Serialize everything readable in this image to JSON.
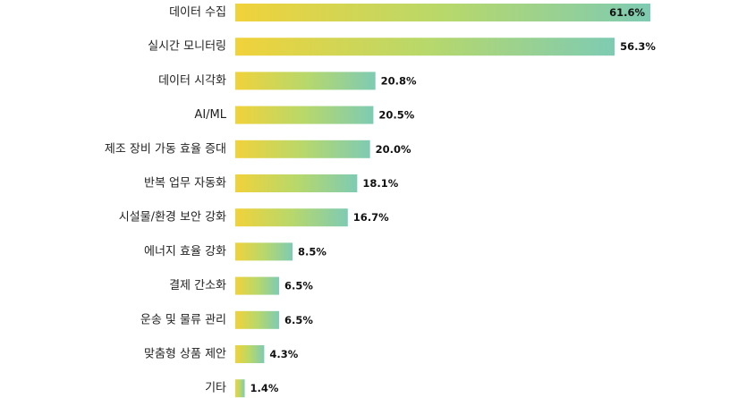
{
  "chart_data": {
    "type": "bar",
    "orientation": "horizontal",
    "categories": [
      "데이터 수집",
      "실시간 모니터링",
      "데이터 시각화",
      "AI/ML",
      "제조 장비 가동 효율 증대",
      "반복 업무 자동화",
      "시설물/환경 보안 강화",
      "에너지 효율 강화",
      "결제 간소화",
      "운송 및 물류 관리",
      "맞춤형 상품 제안",
      "기타"
    ],
    "values": [
      61.6,
      56.3,
      20.8,
      20.5,
      20.0,
      18.1,
      16.7,
      8.5,
      6.5,
      6.5,
      4.3,
      1.4
    ],
    "value_labels": [
      "61.6%",
      "56.3%",
      "20.8%",
      "20.5%",
      "20.0%",
      "18.1%",
      "16.7%",
      "8.5%",
      "6.5%",
      "6.5%",
      "4.3%",
      "1.4%"
    ],
    "unit": "%",
    "xlim": [
      0,
      61.6
    ],
    "grid": false,
    "legend": "none",
    "colors": {
      "gradient_start": "#f1d23a",
      "gradient_mid": "#b8d86a",
      "gradient_end": "#7ecbb3"
    }
  }
}
